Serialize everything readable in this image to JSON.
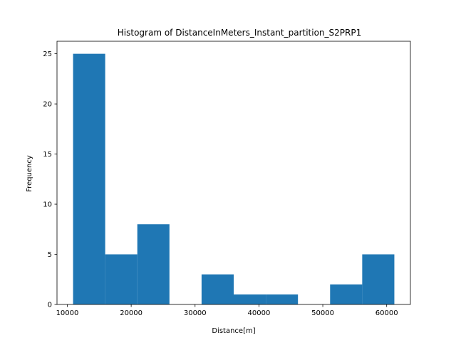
{
  "chart_data": {
    "type": "bar",
    "title": "Histogram of DistanceInMeters_Instant_partition_S2PRP1",
    "xlabel": "Distance[m]",
    "ylabel": "Frequency",
    "bin_edges": [
      10900,
      15930,
      20960,
      25990,
      31020,
      36050,
      41080,
      46110,
      51140,
      56170,
      61200
    ],
    "values": [
      25,
      5,
      8,
      0,
      3,
      1,
      1,
      0,
      2,
      5
    ],
    "xlim": [
      8385,
      63715
    ],
    "ylim": [
      0,
      26.25
    ],
    "xticks": [
      10000,
      20000,
      30000,
      40000,
      50000,
      60000
    ],
    "xtick_labels": [
      "10000",
      "20000",
      "30000",
      "40000",
      "50000",
      "60000"
    ],
    "yticks": [
      0,
      5,
      10,
      15,
      20,
      25
    ],
    "ytick_labels": [
      "0",
      "5",
      "10",
      "15",
      "20",
      "25"
    ],
    "bar_color": "#1f77b4",
    "grid": false,
    "legend": "none"
  }
}
